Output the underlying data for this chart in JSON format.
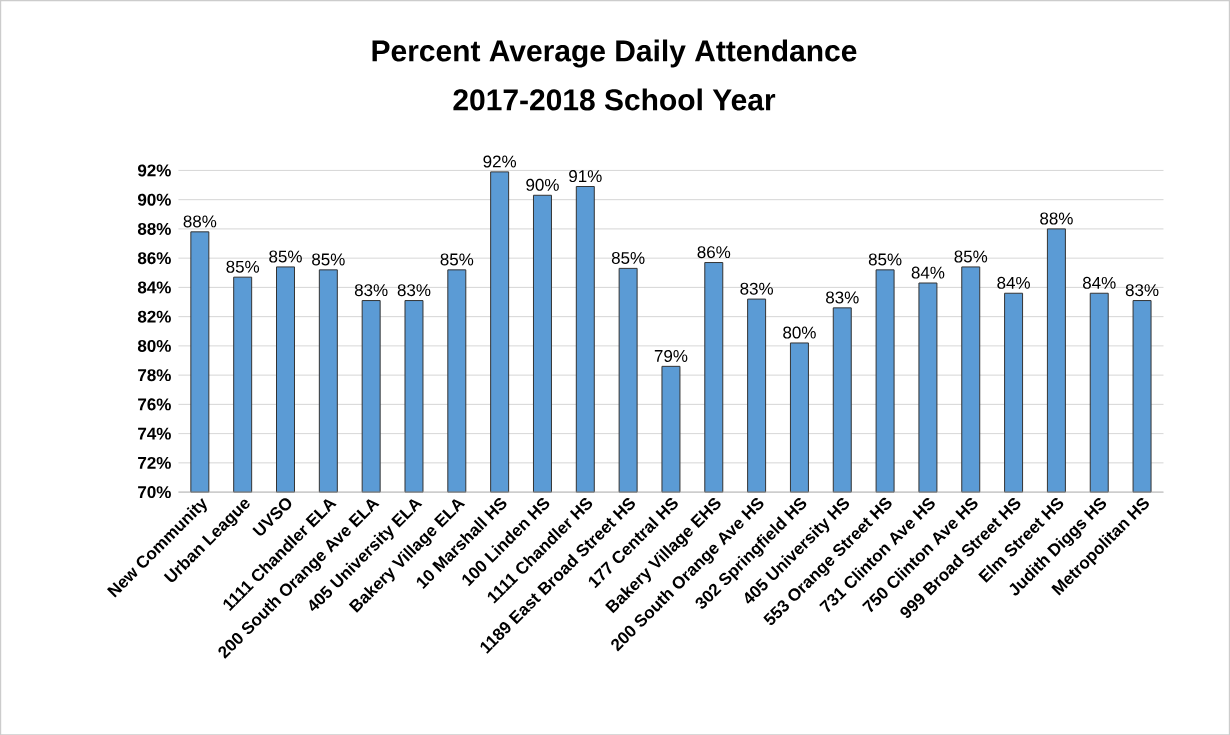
{
  "chart_data": {
    "type": "bar",
    "title": "Percent Average Daily Attendance",
    "subtitle": "2017-2018 School Year",
    "categories": [
      "New Community",
      "Urban League",
      "UVSO",
      "1111 Chandler ELA",
      "200 South Orange Ave ELA",
      "405 University ELA",
      "Bakery Village ELA",
      "10 Marshall HS",
      "100 Linden HS",
      "1111 Chandler HS",
      "1189 East Broad Street HS",
      "177 Central HS",
      "Bakery Village  EHS",
      "200 South Orange Ave HS",
      "302 Springfield HS",
      "405 University HS",
      "553 Orange Street HS",
      "731 Clinton Ave HS",
      "750 Clinton Ave HS",
      "999 Broad Street HS",
      "Elm Street HS",
      "Judith Diggs HS",
      "Metropolitan HS"
    ],
    "values": [
      87.8,
      84.7,
      85.4,
      85.2,
      83.1,
      83.1,
      85.2,
      91.9,
      90.3,
      90.9,
      85.3,
      78.6,
      85.7,
      83.2,
      80.2,
      82.6,
      85.2,
      84.3,
      85.4,
      83.6,
      88.0,
      83.6,
      83.1
    ],
    "value_labels": [
      "88%",
      "85%",
      "85%",
      "85%",
      "83%",
      "83%",
      "85%",
      "92%",
      "90%",
      "91%",
      "85%",
      "79%",
      "86%",
      "83%",
      "80%",
      "83%",
      "85%",
      "84%",
      "85%",
      "84%",
      "88%",
      "84%",
      "83%"
    ],
    "color": "#5b9bd5",
    "ylim": [
      70,
      92
    ],
    "yticks": [
      {
        "value": 70,
        "label": "70%"
      },
      {
        "value": 72,
        "label": "72%"
      },
      {
        "value": 74,
        "label": "74%"
      },
      {
        "value": 76,
        "label": "76%"
      },
      {
        "value": 78,
        "label": "78%"
      },
      {
        "value": 80,
        "label": "80%"
      },
      {
        "value": 82,
        "label": "82%"
      },
      {
        "value": 84,
        "label": "84%"
      },
      {
        "value": 86,
        "label": "86%"
      },
      {
        "value": 88,
        "label": "88%"
      },
      {
        "value": 90,
        "label": "90%"
      },
      {
        "value": 92,
        "label": "92%"
      }
    ],
    "grid": "y"
  }
}
